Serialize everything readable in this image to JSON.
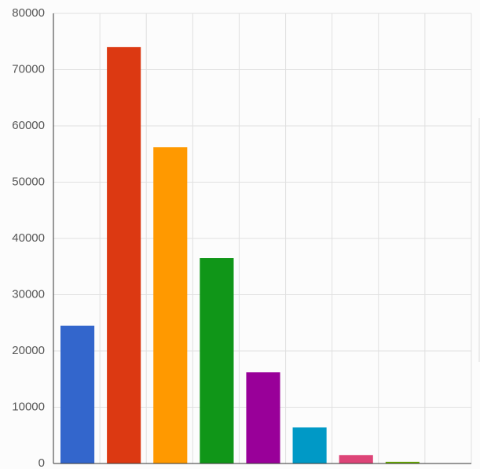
{
  "chart_data": {
    "type": "bar",
    "categories": [
      null,
      null,
      null,
      null,
      null,
      null,
      null,
      null,
      null
    ],
    "values": [
      24500,
      74000,
      56200,
      36500,
      16200,
      6400,
      1500,
      300,
      50
    ],
    "colors": [
      "#3366cc",
      "#dc3912",
      "#ff9900",
      "#109618",
      "#990099",
      "#0099c6",
      "#dd4477",
      "#66aa00",
      "#b82e2e"
    ],
    "ylim": [
      0,
      80000
    ],
    "yticks": [
      0,
      10000,
      20000,
      30000,
      40000,
      50000,
      60000,
      70000,
      80000
    ],
    "grid": true
  }
}
